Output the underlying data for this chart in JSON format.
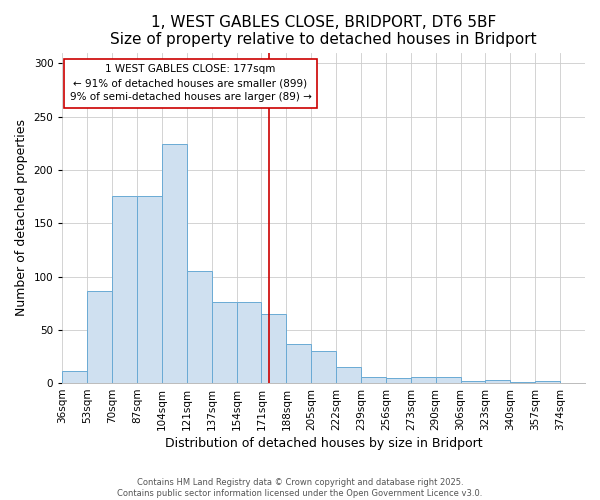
{
  "title": "1, WEST GABLES CLOSE, BRIDPORT, DT6 5BF",
  "subtitle": "Size of property relative to detached houses in Bridport",
  "xlabel": "Distribution of detached houses by size in Bridport",
  "ylabel": "Number of detached properties",
  "bar_labels": [
    "36sqm",
    "53sqm",
    "70sqm",
    "87sqm",
    "104sqm",
    "121sqm",
    "137sqm",
    "154sqm",
    "171sqm",
    "188sqm",
    "205sqm",
    "222sqm",
    "239sqm",
    "256sqm",
    "273sqm",
    "290sqm",
    "306sqm",
    "323sqm",
    "340sqm",
    "357sqm",
    "374sqm"
  ],
  "bar_heights": [
    11,
    86,
    176,
    176,
    224,
    105,
    76,
    76,
    65,
    37,
    30,
    15,
    6,
    5,
    6,
    6,
    2,
    3,
    1,
    2
  ],
  "bar_color": "#cfe0f0",
  "bar_edge_color": "#6aaad4",
  "bin_width": 17,
  "vline_x": 177,
  "vline_color": "#cc0000",
  "ylim": [
    0,
    310
  ],
  "yticks": [
    0,
    50,
    100,
    150,
    200,
    250,
    300
  ],
  "annotation_title": "1 WEST GABLES CLOSE: 177sqm",
  "annotation_line1": "← 91% of detached houses are smaller (899)",
  "annotation_line2": "9% of semi-detached houses are larger (89) →",
  "annotation_box_color": "#ffffff",
  "annotation_box_edge": "#cc0000",
  "footer1": "Contains HM Land Registry data © Crown copyright and database right 2025.",
  "footer2": "Contains public sector information licensed under the Open Government Licence v3.0.",
  "bg_color": "#ffffff",
  "title_fontsize": 11,
  "subtitle_fontsize": 9.5,
  "axis_label_fontsize": 9,
  "tick_fontsize": 7.5,
  "annotation_fontsize": 7.5
}
